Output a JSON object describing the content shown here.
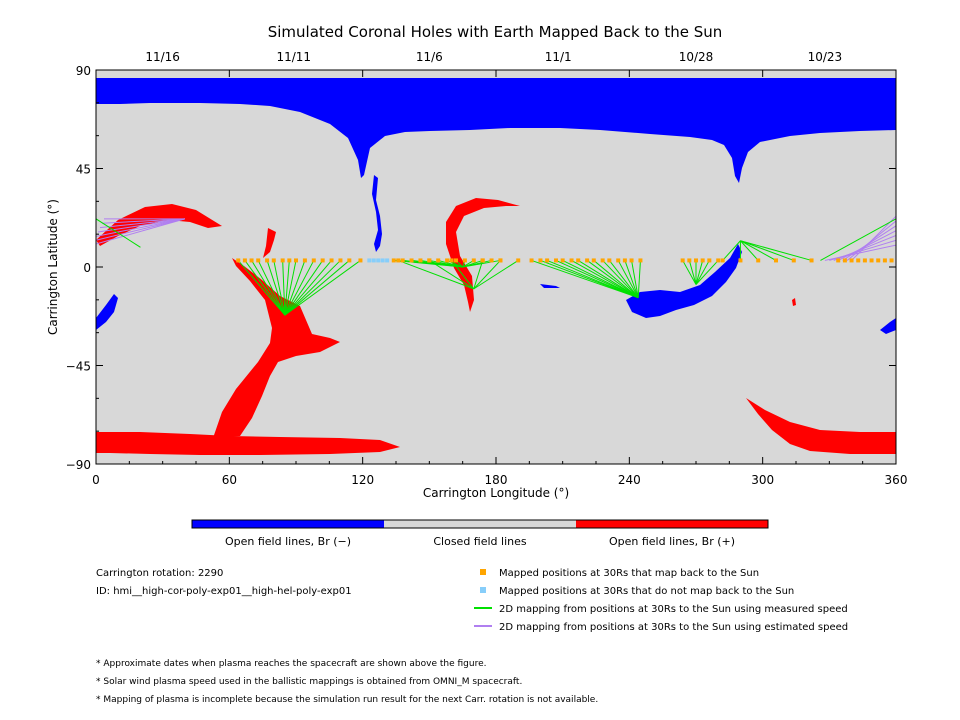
{
  "chart_data": {
    "type": "scatter",
    "title": "Simulated Coronal Holes with Earth Mapped Back to the Sun",
    "xlabel": "Carrington Longitude (°)",
    "ylabel": "Carrington Latitude (°)",
    "xlim": [
      0,
      360
    ],
    "ylim": [
      -90,
      90
    ],
    "x_ticks": [
      "0",
      "60",
      "120",
      "180",
      "240",
      "300",
      "360"
    ],
    "y_ticks": [
      "90",
      "45",
      "0",
      "−45",
      "−90"
    ],
    "top_axis": [
      {
        "label": "11/16",
        "lon": 30
      },
      {
        "label": "11/11",
        "lon": 89
      },
      {
        "label": "11/6",
        "lon": 150
      },
      {
        "label": "11/1",
        "lon": 208
      },
      {
        "label": "10/28",
        "lon": 270
      },
      {
        "label": "10/23",
        "lon": 328
      }
    ],
    "colorbar": [
      {
        "label": "Open field lines, Br (−)",
        "color": "#0000ff"
      },
      {
        "label": "Closed field lines",
        "color": "#d8d8d8"
      },
      {
        "label": "Open field lines, Br (+)",
        "color": "#ff0000"
      }
    ],
    "legend": [
      {
        "label": "Mapped positions at 30Rs that map back to the Sun",
        "color": "#ffa500",
        "marker": "square"
      },
      {
        "label": "Mapped positions at 30Rs that do not map back to the Sun",
        "color": "#87cefa",
        "marker": "square"
      },
      {
        "label": "2D mapping from positions at 30Rs to the Sun using measured speed",
        "color": "#00e000",
        "marker": "line"
      },
      {
        "label": "2D mapping from positions at 30Rs to the Sun using estimated speed",
        "color": "#b07ff0",
        "marker": "line"
      }
    ],
    "footpoint_groups": [
      {
        "target": [
          85,
          -22
        ],
        "sources": [
          64,
          67,
          70,
          73,
          77,
          80,
          84,
          87,
          90,
          94,
          98,
          102,
          106,
          110,
          114,
          119
        ]
      },
      {
        "target": [
          165,
          0
        ],
        "sources": [
          134,
          138,
          142,
          146,
          150,
          154,
          158,
          162,
          166,
          170,
          174,
          178,
          182
        ]
      },
      {
        "target": [
          170,
          -10
        ],
        "sources": [
          136,
          150,
          160,
          174,
          182,
          190
        ]
      },
      {
        "target": [
          244,
          -14
        ],
        "sources": [
          196,
          200,
          203,
          207,
          210,
          214,
          217,
          221,
          224,
          228,
          231,
          235,
          238,
          241,
          245
        ]
      },
      {
        "target": [
          270,
          -8
        ],
        "sources": [
          264,
          267,
          270,
          273,
          276,
          280
        ]
      },
      {
        "target": [
          290,
          12
        ],
        "sources": [
          282,
          290,
          298,
          306,
          314,
          322
        ]
      }
    ],
    "open_positions_lon": [
      123,
      125,
      127,
      129,
      131,
      134,
      136,
      138,
      140,
      142,
      145,
      147,
      149,
      151,
      153,
      156,
      158,
      160,
      162,
      164,
      166,
      169,
      171,
      173,
      175,
      177,
      180,
      182,
      184,
      186,
      188
    ],
    "estimated_group": {
      "target": [
        40,
        22
      ],
      "sources": [
        0,
        3,
        6,
        9,
        12,
        15,
        18
      ]
    },
    "carrington_rotation_label": "Carrington rotation: 2290",
    "id_label": "ID: hmi__high-cor-poly-exp01__high-hel-poly-exp01",
    "notes": [
      "* Approximate dates when plasma reaches the spacecraft are shown above the figure.",
      "* Solar wind plasma speed used in the ballistic mappings is obtained from OMNI_M spacecraft.",
      "* Mapping of plasma is incomplete because the simulation run result for the next Carr. rotation is not available."
    ],
    "grid": false
  }
}
